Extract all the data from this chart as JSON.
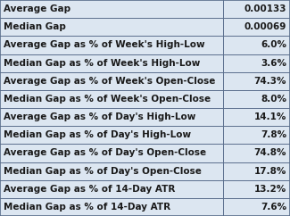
{
  "rows": [
    [
      "Average Gap",
      "0.00133"
    ],
    [
      "Median Gap",
      "0.00069"
    ],
    [
      "Average Gap as % of Week's High-Low",
      "6.0%"
    ],
    [
      "Median Gap as % of Week's High-Low",
      "3.6%"
    ],
    [
      "Average Gap as % of Week's Open-Close",
      "74.3%"
    ],
    [
      "Median Gap as % of Week's Open-Close",
      "8.0%"
    ],
    [
      "Average Gap as % of Day's High-Low",
      "14.1%"
    ],
    [
      "Median Gap as % of Day's High-Low",
      "7.8%"
    ],
    [
      "Average Gap as % of Day's Open-Close",
      "74.8%"
    ],
    [
      "Median Gap as % of Day's Open-Close",
      "17.8%"
    ],
    [
      "Average Gap as % of 14-Day ATR",
      "13.2%"
    ],
    [
      "Median Gap as % of 14-Day ATR",
      "7.6%"
    ]
  ],
  "row_bg_color": "#dce6f1",
  "border_color": "#5a6e8c",
  "text_color": "#1a1a1a",
  "font_size": 7.5,
  "col_split": 0.77,
  "background_color": "#dce6f1"
}
